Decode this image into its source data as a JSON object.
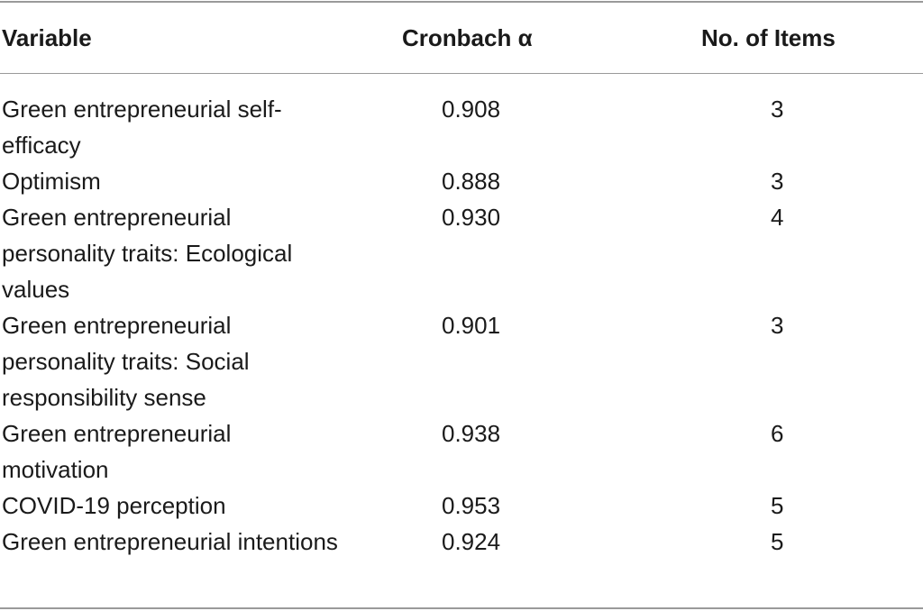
{
  "table": {
    "headers": {
      "variable": "Variable",
      "alpha": "Cronbach α",
      "items": "No. of Items"
    },
    "rows": [
      {
        "variable": "Green entrepreneurial self-efficacy",
        "alpha": "0.908",
        "items": "3"
      },
      {
        "variable": "Optimism",
        "alpha": "0.888",
        "items": "3"
      },
      {
        "variable": "Green entrepreneurial personality traits: Ecological values",
        "alpha": "0.930",
        "items": "4"
      },
      {
        "variable": "Green entrepreneurial personality traits: Social responsibility sense",
        "alpha": "0.901",
        "items": "3"
      },
      {
        "variable": "Green entrepreneurial motivation",
        "alpha": "0.938",
        "items": "6"
      },
      {
        "variable": "COVID-19 perception",
        "alpha": "0.953",
        "items": "5"
      },
      {
        "variable": "Green entrepreneurial intentions",
        "alpha": "0.924",
        "items": "5"
      }
    ]
  }
}
